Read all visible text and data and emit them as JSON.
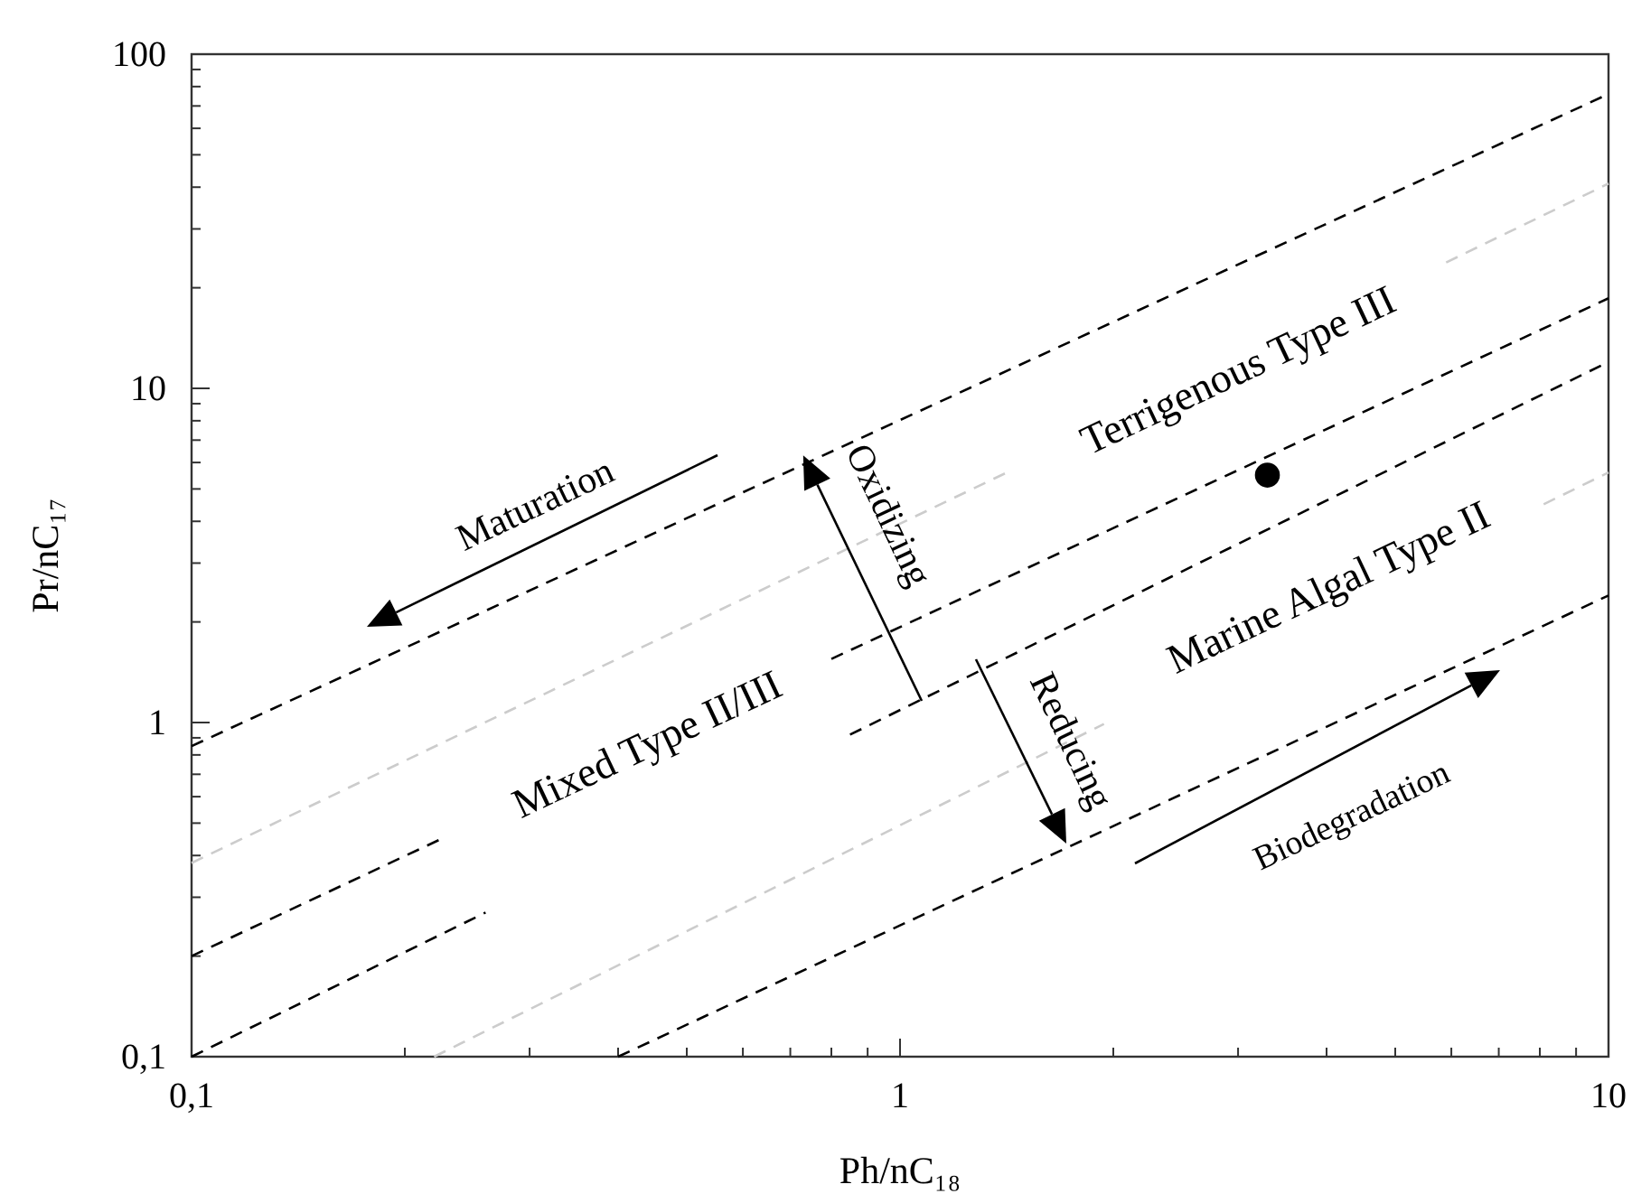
{
  "chart_data": {
    "type": "line",
    "xlabel": "Ph/nC₁₈",
    "ylabel": "Pr/nC₁₇",
    "log": "xy",
    "line_style": "dashed",
    "xlim": [
      0.1,
      10
    ],
    "ylim": [
      0.1,
      100
    ],
    "xticks": [
      {
        "value": 0.1,
        "label": "0,1"
      },
      {
        "value": 0.2,
        "label": null
      },
      {
        "value": 0.3,
        "label": null
      },
      {
        "value": 0.4,
        "label": null
      },
      {
        "value": 0.5,
        "label": null
      },
      {
        "value": 0.6,
        "label": null
      },
      {
        "value": 0.7,
        "label": null
      },
      {
        "value": 0.8,
        "label": null
      },
      {
        "value": 0.9,
        "label": null
      },
      1,
      {
        "value": 2,
        "label": null
      },
      {
        "value": 3,
        "label": null
      },
      {
        "value": 4,
        "label": null
      },
      {
        "value": 5,
        "label": null
      },
      {
        "value": 6,
        "label": null
      },
      {
        "value": 7,
        "label": null
      },
      {
        "value": 8,
        "label": null
      },
      {
        "value": 9,
        "label": null
      },
      10
    ],
    "yticks": [
      {
        "value": 0.1,
        "label": "0,1"
      },
      {
        "value": 0.2,
        "label": null
      },
      {
        "value": 0.3,
        "label": null
      },
      {
        "value": 0.4,
        "label": null
      },
      {
        "value": 0.5,
        "label": null
      },
      {
        "value": 0.6,
        "label": null
      },
      {
        "value": 0.7,
        "label": null
      },
      {
        "value": 0.8,
        "label": null
      },
      {
        "value": 0.9,
        "label": null
      },
      1,
      {
        "value": 2,
        "label": null
      },
      {
        "value": 3,
        "label": null
      },
      {
        "value": 4,
        "label": null
      },
      {
        "value": 5,
        "label": null
      },
      {
        "value": 6,
        "label": null
      },
      {
        "value": 7,
        "label": null
      },
      {
        "value": 8,
        "label": null
      },
      {
        "value": 9,
        "label": null
      },
      10,
      {
        "value": 20,
        "label": null
      },
      {
        "value": 30,
        "label": null
      },
      {
        "value": 40,
        "label": null
      },
      {
        "value": 50,
        "label": null
      },
      {
        "value": 60,
        "label": null
      },
      {
        "value": 70,
        "label": null
      },
      {
        "value": 80,
        "label": null
      },
      {
        "value": 90,
        "label": null
      },
      100
    ],
    "series": [
      {
        "color": "#000000",
        "x": [
          0.1,
          10
        ],
        "values": [
          0.85,
          76
        ]
      },
      {
        "color": "#cccccc",
        "x": [
          0.1,
          1.44,
          3,
          5.9,
          10
        ],
        "values": [
          0.38,
          5.7,
          null,
          23.8,
          41
        ]
      },
      {
        "color": "#000000",
        "x": [
          0.1,
          0.226,
          0.5,
          0.8,
          10
        ],
        "values": [
          0.2,
          0.45,
          null,
          1.55,
          18.6
        ]
      },
      {
        "color": "#000000",
        "x": [
          0.1,
          0.26,
          0.5,
          0.85,
          10
        ],
        "values": [
          0.1,
          0.27,
          null,
          0.92,
          12
        ]
      },
      {
        "color": "#cccccc",
        "x": [
          0.22,
          1.94,
          4,
          8.1,
          10
        ],
        "values": [
          0.1,
          0.99,
          null,
          4.5,
          5.6
        ]
      },
      {
        "color": "#000000",
        "x": [
          0.4,
          10
        ],
        "values": [
          0.1,
          2.4
        ]
      },
      {
        "type": "scatter",
        "color": "#000000",
        "marker": "circle",
        "x": [
          3.3
        ],
        "values": [
          5.5
        ]
      }
    ],
    "annotations": [
      "Terrigenous Type III",
      "Marine Algal Type II",
      "Mixed Type II/III",
      "Maturation",
      "Biodegradation",
      {
        "text": "Oxidizing",
        "x": 0.73,
        "y": 6.3
      },
      "Reducing"
    ]
  }
}
